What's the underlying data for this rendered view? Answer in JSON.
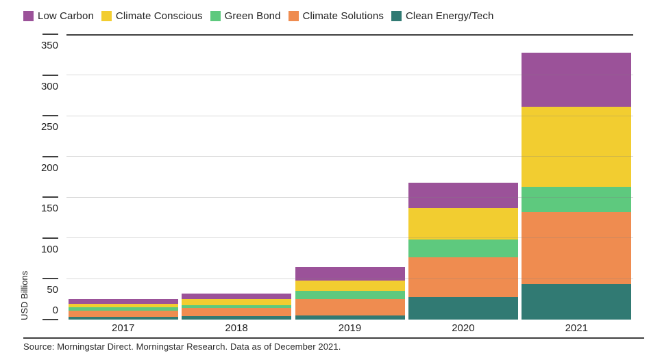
{
  "legend": {
    "items": [
      {
        "label": "Low Carbon",
        "color": "#9B5299"
      },
      {
        "label": "Climate Conscious",
        "color": "#F2CD30"
      },
      {
        "label": "Green Bond",
        "color": "#5EC97E"
      },
      {
        "label": "Climate Solutions",
        "color": "#EF8C50"
      },
      {
        "label": "Clean Energy/Tech",
        "color": "#317A73"
      }
    ]
  },
  "chart_data": {
    "type": "bar",
    "stacked": true,
    "title": "",
    "xlabel": "",
    "ylabel": "USD Billions",
    "categories": [
      "2017",
      "2018",
      "2019",
      "2020",
      "2021"
    ],
    "series": [
      {
        "name": "Clean Energy/Tech",
        "color": "#317A73",
        "values": [
          3,
          4,
          5,
          28,
          44
        ]
      },
      {
        "name": "Climate Solutions",
        "color": "#EF8C50",
        "values": [
          8,
          10,
          20,
          48,
          88
        ]
      },
      {
        "name": "Green Bond",
        "color": "#5EC97E",
        "values": [
          4,
          4,
          10,
          22,
          31
        ]
      },
      {
        "name": "Climate Conscious",
        "color": "#F2CD30",
        "values": [
          4,
          7,
          13,
          39,
          98
        ]
      },
      {
        "name": "Low Carbon",
        "color": "#9B5299",
        "values": [
          6,
          7,
          17,
          31,
          66
        ]
      }
    ],
    "stack_order": "bottom-to-top",
    "totals": [
      25,
      32,
      65,
      168,
      327
    ],
    "ylim": [
      0,
      350
    ],
    "yticks": [
      0,
      50,
      100,
      150,
      200,
      250,
      300,
      350
    ],
    "grid": true,
    "legend_position": "top"
  },
  "footer": {
    "source": "Source: Morningstar Direct. Morningstar Research. Data as of December 2021."
  },
  "axis_colors": {
    "tick": "#3F3F3F",
    "gridline": "#D9D9D9",
    "text": "#1F1F1F"
  }
}
